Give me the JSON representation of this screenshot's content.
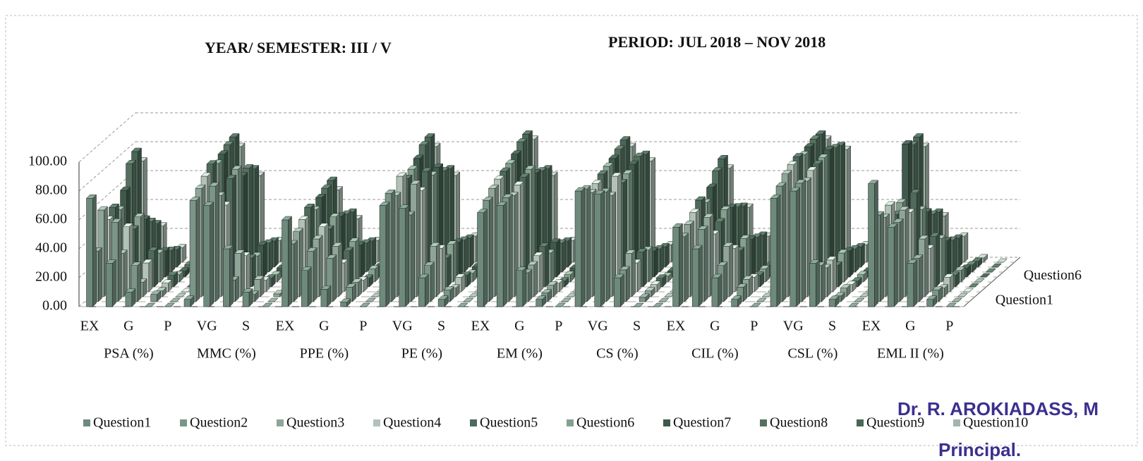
{
  "chart_data": {
    "type": "bar3d",
    "title": "YEAR/ SEMESTER: III / V",
    "subtitle": "PERIOD: JUL 2018 – NOV 2018",
    "categories": [
      "EX",
      null,
      "G",
      null,
      "P",
      null,
      "VG",
      null,
      "S",
      null,
      "EX",
      null,
      "G",
      null,
      "P",
      null,
      "VG",
      null,
      "S",
      null,
      "EX",
      null,
      "G",
      null,
      "P",
      null,
      "VG",
      null,
      "S",
      null,
      "EX",
      null,
      "G",
      null,
      "P",
      null,
      "VG",
      null,
      "S",
      null,
      "EX",
      null,
      "G",
      null,
      "P"
    ],
    "groups": [
      "PSA (%)",
      "MMC (%)",
      "PPE (%)",
      "PE (%)",
      "EM (%)",
      "CS (%)",
      "CIL (%)",
      "CSL (%)",
      "EML II (%)"
    ],
    "ylim": [
      0,
      100
    ],
    "yticks": [
      {
        "value": 0,
        "label": "0.00"
      },
      {
        "value": 20,
        "label": "20.00"
      },
      {
        "value": 40,
        "label": "40.00"
      },
      {
        "value": 60,
        "label": "60.00"
      },
      {
        "value": 80,
        "label": "80.00"
      },
      {
        "value": 100,
        "label": "100.00"
      }
    ],
    "grid": true,
    "legend": "bottom",
    "series": [
      {
        "name": "Question1",
        "color": "#6e8a7c",
        "values": [
          75,
          30,
          10,
          0,
          0,
          5,
          70,
          40,
          10,
          0,
          60,
          25,
          12,
          3,
          0,
          70,
          68,
          20,
          5,
          0,
          65,
          70,
          25,
          5,
          0,
          80,
          78,
          20,
          0,
          0,
          55,
          40,
          20,
          5,
          0,
          75,
          80,
          30,
          5,
          0,
          85,
          55,
          30,
          5,
          0
        ]
      },
      {
        "name": "Question2",
        "color": "#7b9587",
        "values": [
          35,
          55,
          25,
          5,
          0,
          70,
          80,
          15,
          5,
          0,
          40,
          35,
          30,
          10,
          0,
          75,
          60,
          25,
          8,
          0,
          70,
          72,
          20,
          6,
          0,
          78,
          76,
          22,
          3,
          0,
          45,
          50,
          25,
          10,
          0,
          80,
          82,
          25,
          4,
          0,
          60,
          55,
          30,
          8,
          0
        ]
      },
      {
        "name": "Question3",
        "color": "#8fa598",
        "values": [
          60,
          30,
          10,
          4,
          0,
          75,
          70,
          30,
          12,
          2,
          45,
          40,
          35,
          10,
          0,
          70,
          78,
          35,
          6,
          0,
          75,
          70,
          22,
          8,
          0,
          72,
          70,
          30,
          4,
          0,
          50,
          55,
          35,
          12,
          0,
          85,
          80,
          20,
          6,
          0,
          55,
          60,
          40,
          6,
          0
        ]
      },
      {
        "name": "Question4",
        "color": "#b2c2b8",
        "values": [
          50,
          45,
          20,
          6,
          0,
          80,
          60,
          25,
          8,
          0,
          50,
          45,
          20,
          8,
          0,
          80,
          70,
          30,
          10,
          0,
          78,
          74,
          25,
          6,
          0,
          75,
          80,
          20,
          5,
          0,
          55,
          40,
          30,
          10,
          0,
          88,
          84,
          22,
          5,
          0,
          60,
          55,
          30,
          10,
          0
        ]
      },
      {
        "name": "Question5",
        "color": "#4f6a5c",
        "values": [
          55,
          40,
          25,
          8,
          0,
          85,
          75,
          20,
          6,
          0,
          55,
          40,
          25,
          6,
          0,
          75,
          80,
          20,
          8,
          0,
          80,
          76,
          28,
          4,
          0,
          78,
          72,
          24,
          6,
          0,
          60,
          45,
          25,
          8,
          0,
          90,
          85,
          15,
          4,
          0,
          50,
          65,
          35,
          8,
          0
        ]
      },
      {
        "name": "Question6",
        "color": "#85a08f",
        "values": [
          50,
          45,
          20,
          5,
          0,
          82,
          78,
          18,
          5,
          0,
          50,
          45,
          28,
          9,
          0,
          78,
          74,
          26,
          6,
          0,
          82,
          78,
          20,
          5,
          0,
          80,
          75,
          22,
          4,
          0,
          55,
          50,
          30,
          9,
          0,
          88,
          86,
          20,
          5,
          0,
          55,
          50,
          30,
          8,
          0
        ]
      },
      {
        "name": "Question7",
        "color": "#3f5a4c",
        "values": [
          60,
          40,
          18,
          4,
          0,
          85,
          70,
          22,
          6,
          0,
          55,
          42,
          22,
          7,
          0,
          82,
          76,
          24,
          7,
          0,
          85,
          72,
          24,
          6,
          0,
          82,
          78,
          18,
          4,
          0,
          62,
          48,
          26,
          8,
          0,
          90,
          88,
          18,
          4,
          0,
          92,
          45,
          25,
          6,
          0
        ]
      },
      {
        "name": "Question8",
        "color": "#557060",
        "values": [
          75,
          35,
          15,
          5,
          0,
          88,
          72,
          20,
          5,
          0,
          58,
          40,
          20,
          6,
          0,
          88,
          70,
          22,
          6,
          0,
          90,
          70,
          20,
          5,
          0,
          85,
          80,
          16,
          3,
          0,
          70,
          45,
          24,
          7,
          0,
          92,
          86,
          16,
          4,
          0,
          88,
          40,
          22,
          5,
          0
        ]
      },
      {
        "name": "Question9",
        "color": "#4a6657",
        "values": [
          80,
          30,
          12,
          4,
          0,
          90,
          68,
          18,
          4,
          0,
          60,
          38,
          18,
          5,
          0,
          90,
          68,
          20,
          5,
          0,
          92,
          68,
          18,
          4,
          0,
          88,
          78,
          14,
          3,
          0,
          75,
          42,
          22,
          6,
          0,
          92,
          84,
          14,
          3,
          0,
          90,
          38,
          20,
          4,
          0
        ]
      },
      {
        "name": "Question10",
        "color": "#a3b5aa",
        "values": [
          70,
          25,
          10,
          3,
          0,
          80,
          60,
          15,
          3,
          0,
          50,
          30,
          15,
          4,
          0,
          80,
          60,
          18,
          4,
          0,
          85,
          60,
          15,
          3,
          0,
          80,
          70,
          12,
          2,
          0,
          65,
          38,
          18,
          5,
          0,
          85,
          78,
          12,
          2,
          0,
          80,
          32,
          18,
          3,
          0
        ]
      }
    ]
  },
  "stamp": {
    "name": "Dr. R. AROKIADASS, M",
    "role": "Principal."
  }
}
